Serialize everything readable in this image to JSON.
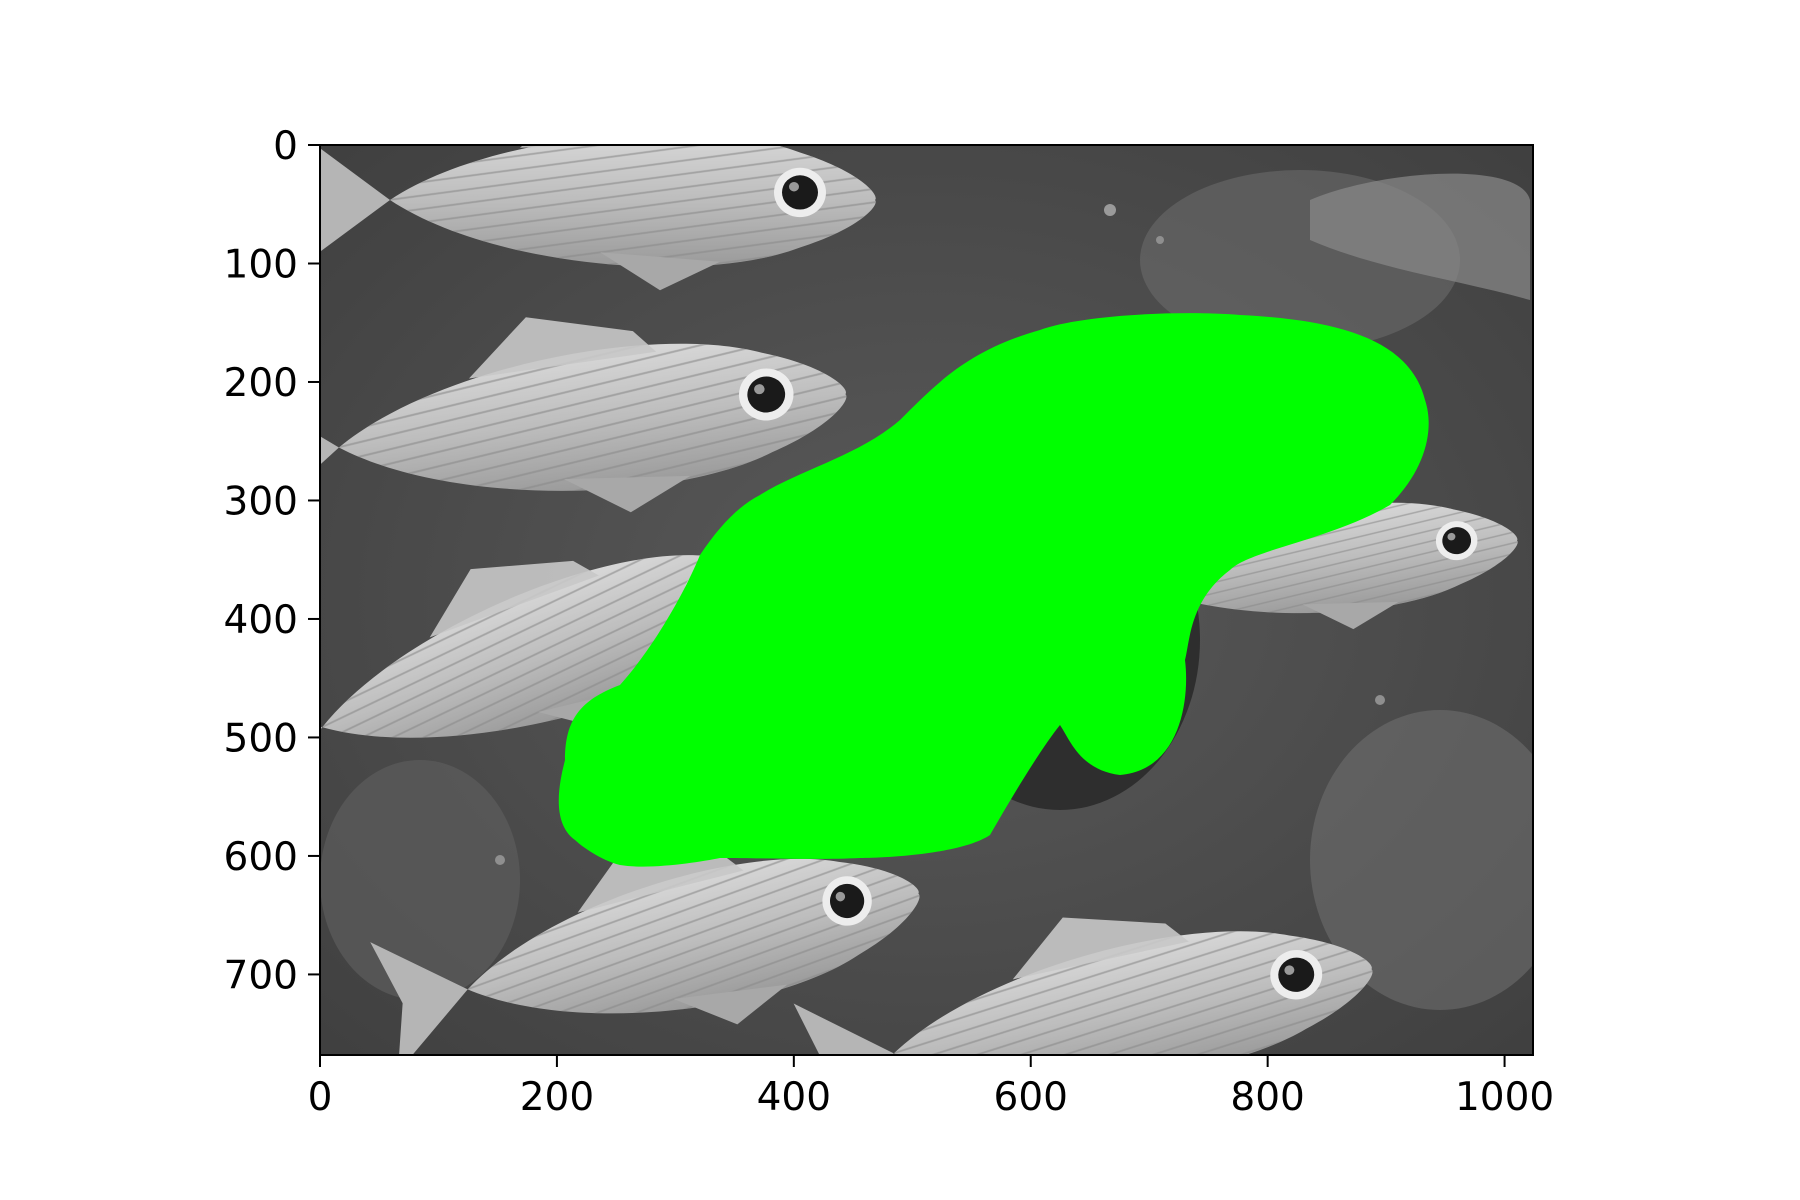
{
  "figure": {
    "image_description": "grayscale underwater photograph of a school of squirrelfish with a bright green segmentation mask overlay",
    "mask_color": "#00ff00",
    "axes_color": "#000000",
    "x_axis": {
      "range": [
        0,
        1024
      ],
      "ticks": [
        {
          "value": 0,
          "label": "0"
        },
        {
          "value": 200,
          "label": "200"
        },
        {
          "value": 400,
          "label": "400"
        },
        {
          "value": 600,
          "label": "600"
        },
        {
          "value": 800,
          "label": "800"
        },
        {
          "value": 1000,
          "label": "1000"
        }
      ]
    },
    "y_axis": {
      "range": [
        0,
        768
      ],
      "ticks": [
        {
          "value": 0,
          "label": "0"
        },
        {
          "value": 100,
          "label": "100"
        },
        {
          "value": 200,
          "label": "200"
        },
        {
          "value": 300,
          "label": "300"
        },
        {
          "value": 400,
          "label": "400"
        },
        {
          "value": 500,
          "label": "500"
        },
        {
          "value": 600,
          "label": "600"
        },
        {
          "value": 700,
          "label": "700"
        }
      ]
    }
  }
}
